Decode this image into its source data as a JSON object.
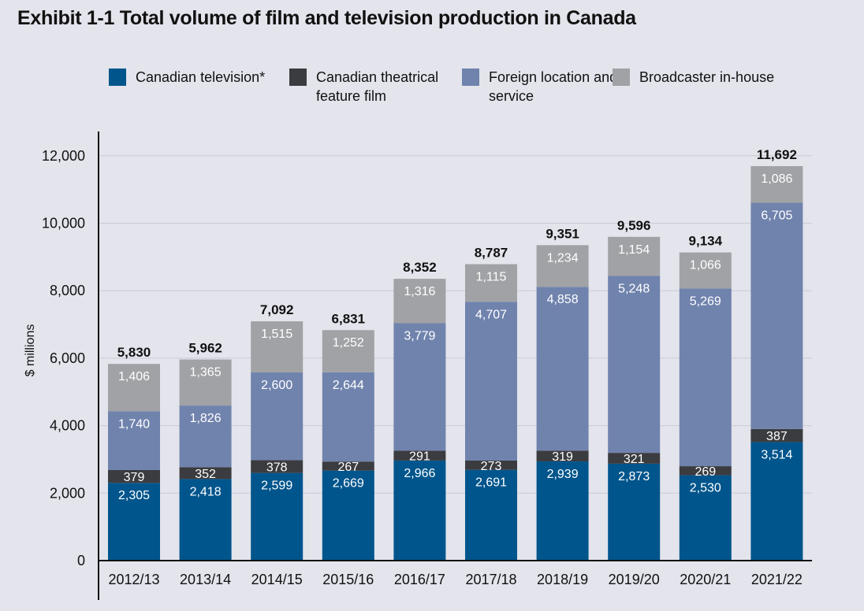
{
  "title": "Exhibit 1-1  Total volume of film and television production in Canada",
  "colors": {
    "background": "#e3e4ec",
    "grid": "#c9cad6",
    "axis": "#111111"
  },
  "chart_data": {
    "type": "bar",
    "stacked": true,
    "categories": [
      "2012/13",
      "2013/14",
      "2014/15",
      "2015/16",
      "2016/17",
      "2017/18",
      "2018/19",
      "2019/20",
      "2020/21",
      "2021/22"
    ],
    "series": [
      {
        "name": "Canadian television*",
        "color": "#00558c",
        "values": [
          2305,
          2418,
          2599,
          2669,
          2966,
          2691,
          2939,
          2873,
          2530,
          3514
        ]
      },
      {
        "name": "Canadian theatrical feature film",
        "color": "#3b3c40",
        "values": [
          379,
          352,
          378,
          267,
          291,
          273,
          319,
          321,
          269,
          387
        ]
      },
      {
        "name": "Foreign location and service",
        "color": "#7083ad",
        "values": [
          1740,
          1826,
          2600,
          2644,
          3779,
          4707,
          4858,
          5248,
          5269,
          6705
        ]
      },
      {
        "name": "Broadcaster in-house",
        "color": "#a1a2a5",
        "values": [
          1406,
          1365,
          1515,
          1252,
          1316,
          1115,
          1234,
          1154,
          1066,
          1086
        ]
      }
    ],
    "totals": [
      5830,
      5962,
      7092,
      6831,
      8352,
      8787,
      9351,
      9596,
      9134,
      11692
    ],
    "ylabel": "$ millions",
    "xlabel": "",
    "ylim": [
      0,
      12500
    ],
    "yticks": [
      0,
      2000,
      4000,
      6000,
      8000,
      10000,
      12000
    ],
    "grid": true,
    "legend_position": "top"
  }
}
